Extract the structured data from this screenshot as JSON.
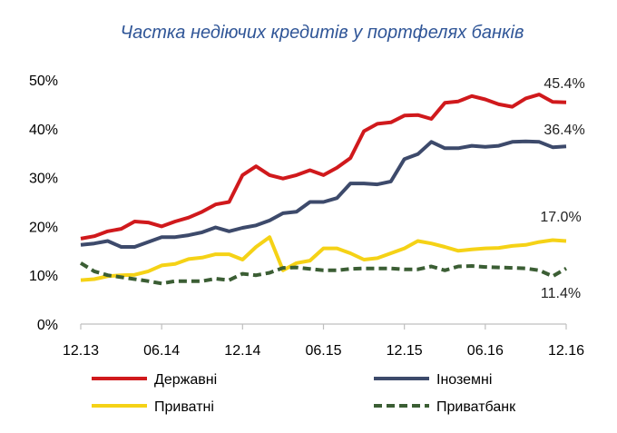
{
  "chart_data": {
    "type": "line",
    "title": "Частка недіючих кредитів у портфелях банків",
    "xlabel": "",
    "ylabel": "",
    "ylim": [
      0,
      50
    ],
    "y_ticks": [
      "0%",
      "10%",
      "20%",
      "30%",
      "40%",
      "50%"
    ],
    "x_ticks": [
      "12.13",
      "06.14",
      "12.14",
      "06.15",
      "12.15",
      "06.16",
      "12.16"
    ],
    "grid": false,
    "legend_position": "bottom",
    "series": [
      {
        "name": "Державні",
        "color": "#d0191c",
        "dash": "solid",
        "end_label": "45.4%",
        "values": [
          17.5,
          18.0,
          19.0,
          19.5,
          21.0,
          20.8,
          20.0,
          21.0,
          21.8,
          23.0,
          24.5,
          25.0,
          30.5,
          32.3,
          30.5,
          29.8,
          30.5,
          31.5,
          30.5,
          32.0,
          34.0,
          39.5,
          41.0,
          41.3,
          42.7,
          42.8,
          42.0,
          45.3,
          45.6,
          46.7,
          46.0,
          45.0,
          44.5,
          46.2,
          47.0,
          45.5,
          45.4
        ]
      },
      {
        "name": "Іноземні",
        "color": "#3d4a6b",
        "dash": "solid",
        "end_label": "36.4%",
        "values": [
          16.2,
          16.5,
          17.0,
          15.8,
          15.8,
          16.8,
          17.8,
          17.8,
          18.2,
          18.8,
          19.8,
          19.0,
          19.7,
          20.2,
          21.2,
          22.7,
          23.0,
          25.0,
          25.0,
          25.8,
          28.8,
          28.8,
          28.6,
          29.2,
          33.8,
          34.8,
          37.3,
          36.0,
          36.0,
          36.5,
          36.3,
          36.5,
          37.3,
          37.4,
          37.3,
          36.2,
          36.4
        ]
      },
      {
        "name": "Приватні",
        "color": "#f5d216",
        "dash": "solid",
        "end_label": "17.0%",
        "values": [
          9.0,
          9.2,
          9.8,
          10.0,
          10.1,
          10.8,
          12.0,
          12.3,
          13.3,
          13.6,
          14.3,
          14.3,
          13.2,
          15.8,
          17.8,
          11.0,
          12.5,
          13.0,
          15.5,
          15.5,
          14.5,
          13.2,
          13.5,
          14.5,
          15.5,
          17.0,
          16.5,
          15.8,
          15.0,
          15.3,
          15.5,
          15.6,
          16.0,
          16.2,
          16.8,
          17.2,
          17.0
        ]
      },
      {
        "name": "Приватбанк",
        "color": "#3b5e34",
        "dash": "dashed",
        "end_label": "11.4%",
        "values": [
          12.5,
          10.8,
          10.0,
          9.6,
          9.2,
          8.8,
          8.3,
          8.8,
          8.8,
          8.8,
          9.3,
          9.0,
          10.3,
          10.0,
          10.5,
          11.5,
          11.6,
          11.3,
          11.0,
          11.0,
          11.3,
          11.4,
          11.4,
          11.4,
          11.2,
          11.2,
          11.8,
          11.0,
          11.8,
          11.9,
          11.7,
          11.6,
          11.5,
          11.4,
          11.0,
          9.8,
          11.4
        ]
      }
    ]
  }
}
